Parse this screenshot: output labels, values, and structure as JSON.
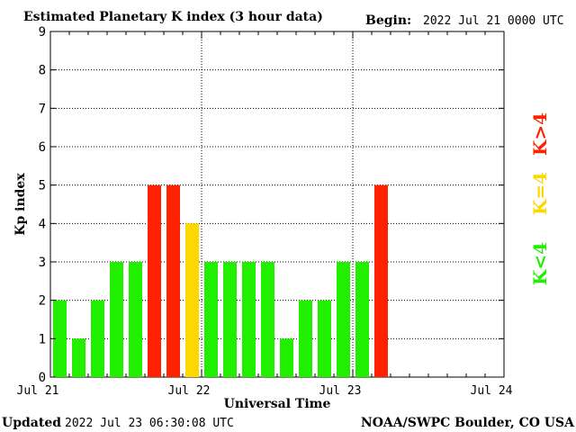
{
  "header": {
    "title": "Estimated Planetary K index (3 hour data)",
    "begin_label": "Begin:",
    "begin_value": "2022 Jul 21 0000 UTC"
  },
  "footer": {
    "updated_label": "Updated",
    "updated_value": "2022 Jul 23 06:30:08 UTC",
    "source": "NOAA/SWPC Boulder, CO USA"
  },
  "legend": {
    "quiet": "K<4",
    "moderate": "K=4",
    "storm": "K>4"
  },
  "colors": {
    "quiet": "#22ee00",
    "moderate": "#ffd700",
    "storm": "#ff2200",
    "axis": "#000000",
    "grid": "#000000"
  },
  "chart_data": {
    "type": "bar",
    "title": "Estimated Planetary K index (3 hour data)",
    "xlabel": "Universal Time",
    "ylabel": "Kp index",
    "ylim": [
      0,
      9
    ],
    "yticks": [
      "0",
      "1",
      "2",
      "3",
      "4",
      "5",
      "6",
      "7",
      "8",
      "9"
    ],
    "xticks": [
      "Jul 21",
      "Jul 22",
      "Jul 23",
      "Jul 24"
    ],
    "bar_interval_hours": 3,
    "values": [
      2,
      1,
      2,
      3,
      3,
      5,
      5,
      4,
      3,
      3,
      3,
      3,
      1,
      2,
      2,
      3,
      3,
      5
    ],
    "grid": true
  }
}
